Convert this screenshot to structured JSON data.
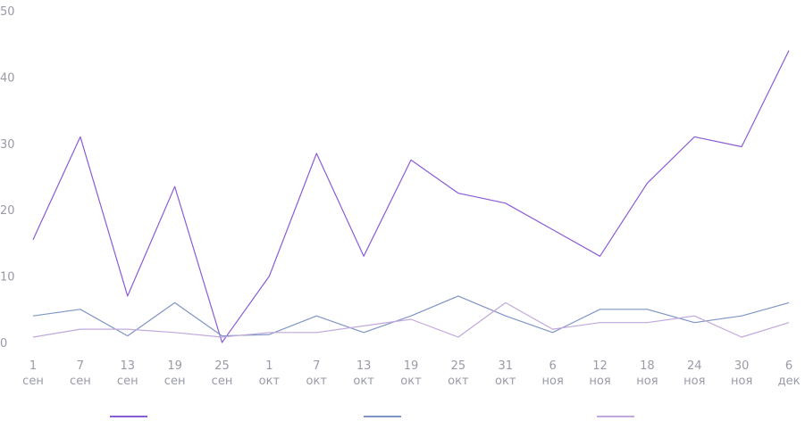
{
  "chart_data": {
    "type": "line",
    "title": "",
    "xlabel": "",
    "ylabel": "",
    "ylim": [
      0,
      50
    ],
    "yticks": [
      0,
      10,
      20,
      30,
      40,
      50
    ],
    "grid": false,
    "legend": "bottom",
    "categories": [
      {
        "day": "1",
        "month": "сен"
      },
      {
        "day": "7",
        "month": "сен"
      },
      {
        "day": "13",
        "month": "сен"
      },
      {
        "day": "19",
        "month": "сен"
      },
      {
        "day": "25",
        "month": "сен"
      },
      {
        "day": "1",
        "month": "окт"
      },
      {
        "day": "7",
        "month": "окт"
      },
      {
        "day": "13",
        "month": "окт"
      },
      {
        "day": "19",
        "month": "окт"
      },
      {
        "day": "25",
        "month": "окт"
      },
      {
        "day": "31",
        "month": "окт"
      },
      {
        "day": "6",
        "month": "ноя"
      },
      {
        "day": "12",
        "month": "ноя"
      },
      {
        "day": "18",
        "month": "ноя"
      },
      {
        "day": "24",
        "month": "ноя"
      },
      {
        "day": "30",
        "month": "ноя"
      },
      {
        "day": "6",
        "month": "дек"
      }
    ],
    "series": [
      {
        "color": "#8a5cd6",
        "values": [
          15.5,
          31,
          7,
          23.5,
          0,
          10,
          28.5,
          13,
          27.5,
          22.5,
          21,
          17,
          13,
          24,
          31,
          29.5,
          44
        ]
      },
      {
        "color": "#7f95c4",
        "values": [
          4,
          5,
          1,
          6,
          1,
          1.2,
          4,
          1.5,
          4,
          7,
          4,
          1.5,
          5,
          5,
          3,
          4,
          6
        ]
      },
      {
        "color": "#c0a8dc",
        "values": [
          0.8,
          2,
          2,
          1.5,
          0.8,
          1.5,
          1.5,
          2.5,
          3.5,
          0.8,
          6,
          2,
          3,
          3,
          4,
          0.8,
          3
        ]
      }
    ]
  }
}
